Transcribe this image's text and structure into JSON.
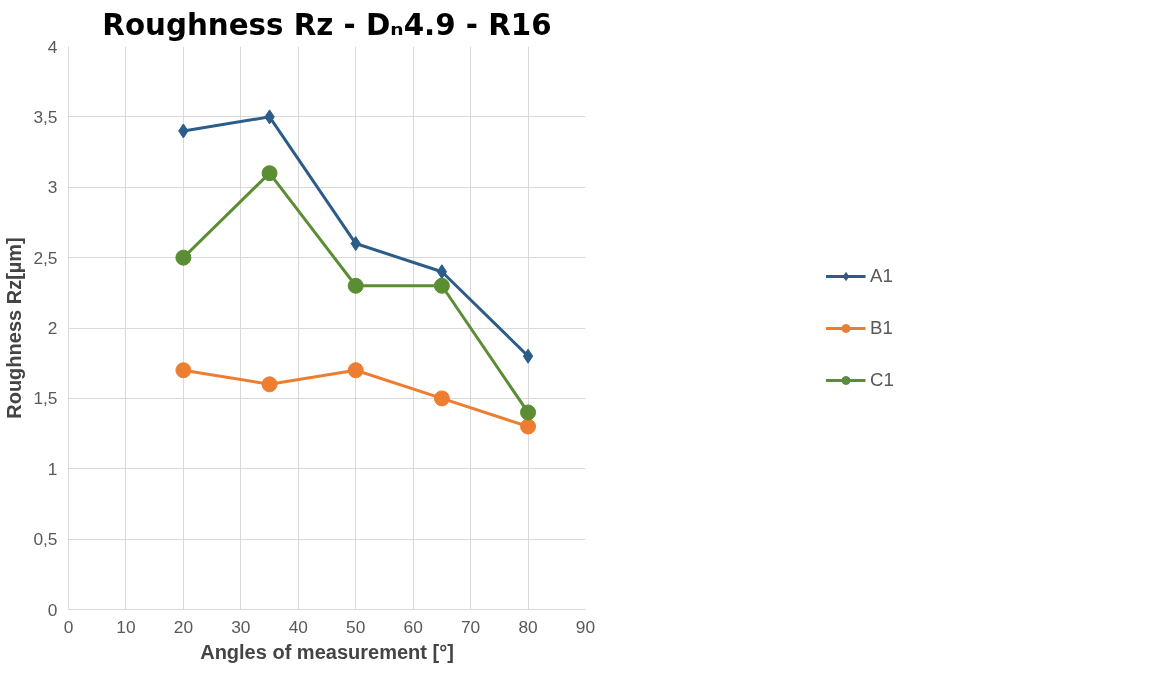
{
  "chart_data": {
    "type": "line",
    "title": "Roughness Rz - Dₙ4.9 - R16",
    "xlabel": "Angles of measurement [°]",
    "ylabel": "Roughness Rz[µm]",
    "x": [
      20,
      35,
      50,
      65,
      80
    ],
    "series": [
      {
        "name": "A1",
        "color": "#2b5c8a",
        "marker": "diamond",
        "values": [
          3.4,
          3.5,
          2.6,
          2.4,
          1.8
        ]
      },
      {
        "name": "B1",
        "color": "#ed7d31",
        "marker": "circle",
        "values": [
          1.7,
          1.6,
          1.7,
          1.5,
          1.3
        ]
      },
      {
        "name": "C1",
        "color": "#5b8d32",
        "marker": "circle",
        "values": [
          2.5,
          3.1,
          2.3,
          2.3,
          1.4
        ]
      }
    ],
    "xlim": [
      0,
      90
    ],
    "xticks": [
      0,
      10,
      20,
      30,
      40,
      50,
      60,
      70,
      80,
      90
    ],
    "ylim": [
      0,
      4
    ],
    "yticks": [
      0,
      {
        "value": 0.5,
        "label": "0,5"
      },
      1,
      {
        "value": 1.5,
        "label": "1,5"
      },
      2,
      {
        "value": 2.5,
        "label": "2,5"
      },
      3,
      {
        "value": 3.5,
        "label": "3,5"
      },
      4
    ],
    "grid": true,
    "legend": "right",
    "line_style": "solid"
  }
}
